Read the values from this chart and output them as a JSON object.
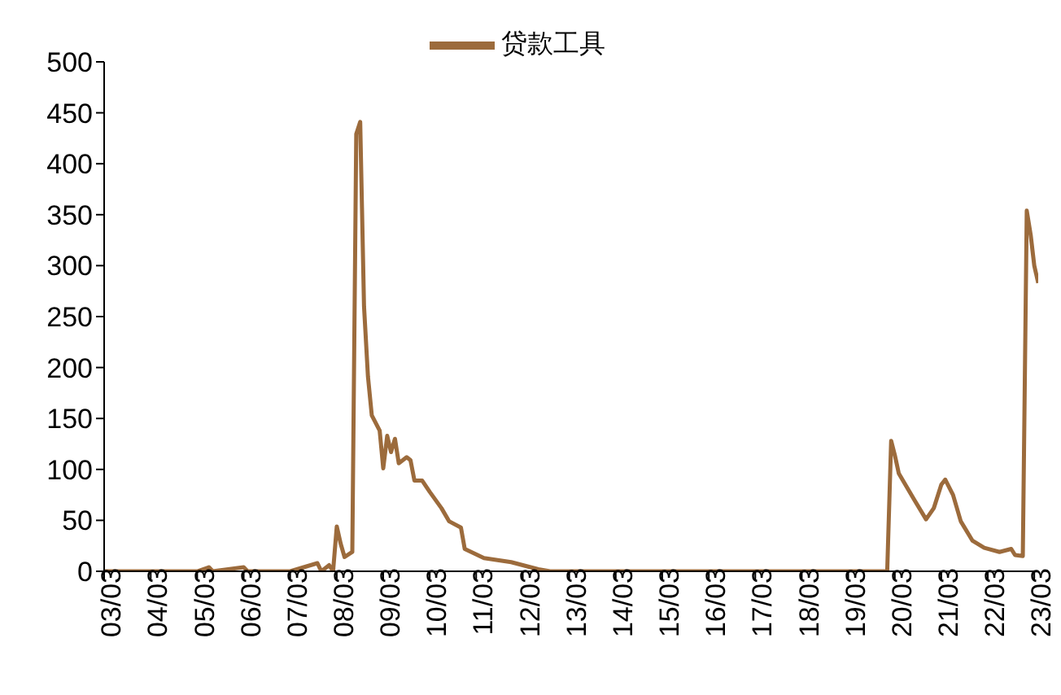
{
  "chart_data": {
    "type": "line",
    "x": [
      "2003-03",
      "2004-03",
      "2005-03",
      "2005-06",
      "2005-07",
      "2006-03",
      "2006-04",
      "2007-03",
      "2007-10",
      "2007-11",
      "2008-01",
      "2008-02",
      "2008-03",
      "2008-04",
      "2008-05",
      "2008-07",
      "2008-08",
      "2008-09",
      "2008-10",
      "2008-11",
      "2008-12",
      "2009-02",
      "2009-03",
      "2009-04",
      "2009-05",
      "2009-06",
      "2009-07",
      "2009-09",
      "2009-10",
      "2009-11",
      "2010-01",
      "2010-03",
      "2010-06",
      "2010-08",
      "2010-11",
      "2010-12",
      "2011-05",
      "2011-12",
      "2012-07",
      "2012-10",
      "2014-03",
      "2016-03",
      "2018-03",
      "2020-01",
      "2020-02",
      "2020-03",
      "2020-04",
      "2020-06",
      "2020-08",
      "2020-11",
      "2021-01",
      "2021-03",
      "2021-04",
      "2021-06",
      "2021-08",
      "2021-11",
      "2022-02",
      "2022-06",
      "2022-09",
      "2022-10",
      "2022-12",
      "2023-01",
      "2023-02",
      "2023-03",
      "2023-04"
    ],
    "series": [
      {
        "name": "贷款工具",
        "color": "#9c6b3c",
        "values": [
          0,
          0,
          0,
          4,
          0,
          4,
          0,
          0,
          8,
          0,
          6,
          0,
          44,
          27,
          14,
          19,
          429,
          441,
          260,
          191,
          153,
          138,
          101,
          133,
          117,
          130,
          106,
          112,
          109,
          89,
          89,
          78,
          62,
          49,
          43,
          22,
          13,
          9,
          2,
          0,
          0,
          0,
          0,
          0,
          128,
          114,
          96,
          83,
          70,
          51,
          62,
          85,
          90,
          75,
          49,
          30,
          23,
          19,
          22,
          16,
          15,
          354,
          330,
          300,
          283
        ]
      }
    ],
    "xlim": [
      "2003-03",
      "2023-04"
    ],
    "xticks": [
      {
        "value": "2003-03",
        "label": "03/03"
      },
      {
        "value": "2004-03",
        "label": "04/03"
      },
      {
        "value": "2005-03",
        "label": "05/03"
      },
      {
        "value": "2006-03",
        "label": "06/03"
      },
      {
        "value": "2007-03",
        "label": "07/03"
      },
      {
        "value": "2008-03",
        "label": "08/03"
      },
      {
        "value": "2009-03",
        "label": "09/03"
      },
      {
        "value": "2010-03",
        "label": "10/03"
      },
      {
        "value": "2011-03",
        "label": "11/03"
      },
      {
        "value": "2012-03",
        "label": "12/03"
      },
      {
        "value": "2013-03",
        "label": "13/03"
      },
      {
        "value": "2014-03",
        "label": "14/03"
      },
      {
        "value": "2015-03",
        "label": "15/03"
      },
      {
        "value": "2016-03",
        "label": "16/03"
      },
      {
        "value": "2017-03",
        "label": "17/03"
      },
      {
        "value": "2018-03",
        "label": "18/03"
      },
      {
        "value": "2019-03",
        "label": "19/03"
      },
      {
        "value": "2020-03",
        "label": "20/03"
      },
      {
        "value": "2021-03",
        "label": "21/03"
      },
      {
        "value": "2022-03",
        "label": "22/03"
      },
      {
        "value": "2023-03",
        "label": "23/03"
      }
    ],
    "ylim": [
      0,
      500
    ],
    "yticks": [
      0,
      50,
      100,
      150,
      200,
      250,
      300,
      350,
      400,
      450,
      500
    ],
    "grid": false,
    "legend": "top",
    "marker": "none",
    "line_style": "solid"
  }
}
